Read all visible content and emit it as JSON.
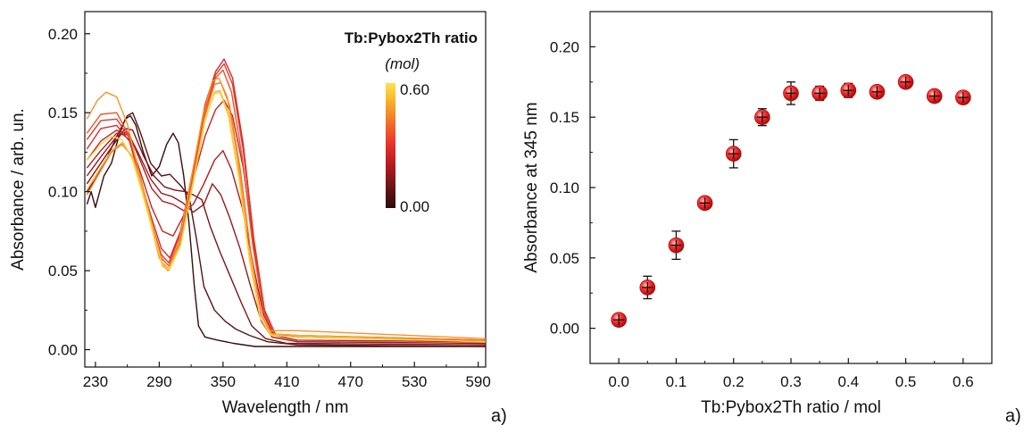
{
  "left_chart": {
    "type": "line",
    "xlabel": "Wavelength / nm",
    "ylabel": "Absorbance / arb. un.",
    "xlim": [
      220,
      597
    ],
    "ylim": [
      -0.011,
      0.214
    ],
    "x_ticks": [
      "230",
      "290",
      "350",
      "410",
      "470",
      "530",
      "590"
    ],
    "y_ticks": [
      "0.00",
      "0.05",
      "0.10",
      "0.15",
      "0.20"
    ],
    "legend_title": "Tb:Pybox2Th ratio",
    "legend_unit": "(mol)",
    "colorbar_max": "0.60",
    "colorbar_min": "0.00",
    "colorbar_colors": [
      "#2e0a0a",
      "#6a1416",
      "#b01a20",
      "#e5302a",
      "#f26a28",
      "#f8a82a",
      "#ffe24a"
    ],
    "panel_label": "a)",
    "series": [
      {
        "ratio": 0.0,
        "color": "#3a0b0b",
        "points": [
          [
            222,
            0.092
          ],
          [
            226,
            0.1
          ],
          [
            230,
            0.09
          ],
          [
            238,
            0.11
          ],
          [
            245,
            0.118
          ],
          [
            252,
            0.135
          ],
          [
            258,
            0.146
          ],
          [
            263,
            0.148
          ],
          [
            268,
            0.142
          ],
          [
            275,
            0.125
          ],
          [
            283,
            0.11
          ],
          [
            290,
            0.116
          ],
          [
            297,
            0.13
          ],
          [
            303,
            0.137
          ],
          [
            308,
            0.131
          ],
          [
            313,
            0.11
          ],
          [
            318,
            0.08
          ],
          [
            323,
            0.04
          ],
          [
            327,
            0.015
          ],
          [
            333,
            0.008
          ],
          [
            345,
            0.006
          ],
          [
            360,
            0.004
          ],
          [
            380,
            0.002
          ],
          [
            410,
            0.002
          ],
          [
            470,
            0.002
          ],
          [
            597,
            0.002
          ]
        ]
      },
      {
        "ratio": 0.05,
        "color": "#5a1212",
        "points": [
          [
            222,
            0.1
          ],
          [
            230,
            0.108
          ],
          [
            240,
            0.12
          ],
          [
            250,
            0.135
          ],
          [
            260,
            0.148
          ],
          [
            265,
            0.15
          ],
          [
            272,
            0.138
          ],
          [
            282,
            0.118
          ],
          [
            292,
            0.11
          ],
          [
            300,
            0.111
          ],
          [
            310,
            0.104
          ],
          [
            318,
            0.097
          ],
          [
            325,
            0.07
          ],
          [
            332,
            0.04
          ],
          [
            342,
            0.025
          ],
          [
            352,
            0.018
          ],
          [
            362,
            0.013
          ],
          [
            375,
            0.009
          ],
          [
            392,
            0.005
          ],
          [
            420,
            0.003
          ],
          [
            597,
            0.002
          ]
        ]
      },
      {
        "ratio": 0.1,
        "color": "#7e1418",
        "points": [
          [
            222,
            0.105
          ],
          [
            232,
            0.115
          ],
          [
            245,
            0.128
          ],
          [
            258,
            0.14
          ],
          [
            265,
            0.139
          ],
          [
            275,
            0.123
          ],
          [
            285,
            0.11
          ],
          [
            295,
            0.103
          ],
          [
            305,
            0.101
          ],
          [
            315,
            0.1
          ],
          [
            322,
            0.098
          ],
          [
            330,
            0.095
          ],
          [
            338,
            0.078
          ],
          [
            347,
            0.062
          ],
          [
            357,
            0.046
          ],
          [
            367,
            0.03
          ],
          [
            377,
            0.015
          ],
          [
            390,
            0.007
          ],
          [
            410,
            0.004
          ],
          [
            597,
            0.003
          ]
        ]
      },
      {
        "ratio": 0.15,
        "color": "#991a1c",
        "points": [
          [
            222,
            0.11
          ],
          [
            235,
            0.122
          ],
          [
            250,
            0.135
          ],
          [
            260,
            0.138
          ],
          [
            270,
            0.125
          ],
          [
            282,
            0.108
          ],
          [
            292,
            0.099
          ],
          [
            302,
            0.097
          ],
          [
            312,
            0.093
          ],
          [
            322,
            0.087
          ],
          [
            332,
            0.092
          ],
          [
            340,
            0.105
          ],
          [
            348,
            0.098
          ],
          [
            356,
            0.084
          ],
          [
            366,
            0.064
          ],
          [
            376,
            0.04
          ],
          [
            386,
            0.018
          ],
          [
            396,
            0.008
          ],
          [
            420,
            0.005
          ],
          [
            597,
            0.004
          ]
        ]
      },
      {
        "ratio": 0.2,
        "color": "#b01c22",
        "points": [
          [
            222,
            0.115
          ],
          [
            235,
            0.126
          ],
          [
            250,
            0.137
          ],
          [
            262,
            0.136
          ],
          [
            272,
            0.12
          ],
          [
            283,
            0.102
          ],
          [
            293,
            0.094
          ],
          [
            303,
            0.092
          ],
          [
            313,
            0.088
          ],
          [
            322,
            0.092
          ],
          [
            332,
            0.105
          ],
          [
            342,
            0.12
          ],
          [
            350,
            0.126
          ],
          [
            358,
            0.114
          ],
          [
            368,
            0.09
          ],
          [
            378,
            0.055
          ],
          [
            388,
            0.022
          ],
          [
            398,
            0.009
          ],
          [
            420,
            0.006
          ],
          [
            597,
            0.005
          ]
        ]
      },
      {
        "ratio": 0.25,
        "color": "#c72426",
        "points": [
          [
            222,
            0.12
          ],
          [
            235,
            0.132
          ],
          [
            250,
            0.139
          ],
          [
            262,
            0.133
          ],
          [
            272,
            0.113
          ],
          [
            283,
            0.09
          ],
          [
            293,
            0.075
          ],
          [
            303,
            0.072
          ],
          [
            313,
            0.085
          ],
          [
            323,
            0.11
          ],
          [
            333,
            0.135
          ],
          [
            343,
            0.152
          ],
          [
            351,
            0.158
          ],
          [
            359,
            0.148
          ],
          [
            369,
            0.115
          ],
          [
            379,
            0.065
          ],
          [
            389,
            0.025
          ],
          [
            399,
            0.01
          ],
          [
            420,
            0.008
          ],
          [
            597,
            0.006
          ]
        ]
      },
      {
        "ratio": 0.3,
        "color": "#d62c2a",
        "points": [
          [
            222,
            0.127
          ],
          [
            235,
            0.14
          ],
          [
            250,
            0.142
          ],
          [
            262,
            0.132
          ],
          [
            272,
            0.108
          ],
          [
            283,
            0.083
          ],
          [
            292,
            0.064
          ],
          [
            300,
            0.058
          ],
          [
            310,
            0.075
          ],
          [
            322,
            0.115
          ],
          [
            333,
            0.155
          ],
          [
            343,
            0.176
          ],
          [
            351,
            0.184
          ],
          [
            359,
            0.172
          ],
          [
            369,
            0.13
          ],
          [
            379,
            0.07
          ],
          [
            389,
            0.025
          ],
          [
            399,
            0.01
          ],
          [
            420,
            0.008
          ],
          [
            597,
            0.006
          ]
        ]
      },
      {
        "ratio": 0.35,
        "color": "#e3392b",
        "points": [
          [
            222,
            0.133
          ],
          [
            235,
            0.145
          ],
          [
            250,
            0.146
          ],
          [
            262,
            0.134
          ],
          [
            272,
            0.11
          ],
          [
            283,
            0.08
          ],
          [
            292,
            0.06
          ],
          [
            299,
            0.055
          ],
          [
            310,
            0.073
          ],
          [
            322,
            0.113
          ],
          [
            333,
            0.152
          ],
          [
            343,
            0.174
          ],
          [
            351,
            0.181
          ],
          [
            359,
            0.168
          ],
          [
            369,
            0.126
          ],
          [
            379,
            0.068
          ],
          [
            389,
            0.024
          ],
          [
            399,
            0.01
          ],
          [
            420,
            0.008
          ],
          [
            597,
            0.006
          ]
        ]
      },
      {
        "ratio": 0.4,
        "color": "#ec5328",
        "points": [
          [
            222,
            0.137
          ],
          [
            235,
            0.149
          ],
          [
            250,
            0.15
          ],
          [
            262,
            0.135
          ],
          [
            272,
            0.11
          ],
          [
            283,
            0.08
          ],
          [
            292,
            0.058
          ],
          [
            299,
            0.053
          ],
          [
            310,
            0.07
          ],
          [
            322,
            0.11
          ],
          [
            333,
            0.15
          ],
          [
            343,
            0.172
          ],
          [
            350,
            0.177
          ],
          [
            358,
            0.163
          ],
          [
            368,
            0.122
          ],
          [
            378,
            0.066
          ],
          [
            388,
            0.024
          ],
          [
            398,
            0.01
          ],
          [
            420,
            0.009
          ],
          [
            597,
            0.006
          ]
        ]
      },
      {
        "ratio": 0.45,
        "color": "#f27227",
        "points": [
          [
            222,
            0.098
          ],
          [
            232,
            0.11
          ],
          [
            245,
            0.125
          ],
          [
            255,
            0.13
          ],
          [
            265,
            0.122
          ],
          [
            275,
            0.102
          ],
          [
            285,
            0.075
          ],
          [
            293,
            0.055
          ],
          [
            299,
            0.051
          ],
          [
            310,
            0.068
          ],
          [
            322,
            0.108
          ],
          [
            333,
            0.148
          ],
          [
            342,
            0.168
          ],
          [
            348,
            0.169
          ],
          [
            356,
            0.155
          ],
          [
            366,
            0.115
          ],
          [
            376,
            0.062
          ],
          [
            386,
            0.022
          ],
          [
            396,
            0.01
          ],
          [
            420,
            0.009
          ],
          [
            597,
            0.006
          ]
        ]
      },
      {
        "ratio": 0.5,
        "color": "#f7932a",
        "points": [
          [
            222,
            0.146
          ],
          [
            232,
            0.158
          ],
          [
            240,
            0.163
          ],
          [
            250,
            0.16
          ],
          [
            260,
            0.143
          ],
          [
            270,
            0.115
          ],
          [
            280,
            0.085
          ],
          [
            290,
            0.058
          ],
          [
            298,
            0.05
          ],
          [
            308,
            0.066
          ],
          [
            320,
            0.108
          ],
          [
            331,
            0.148
          ],
          [
            340,
            0.17
          ],
          [
            346,
            0.172
          ],
          [
            354,
            0.16
          ],
          [
            364,
            0.12
          ],
          [
            374,
            0.064
          ],
          [
            384,
            0.024
          ],
          [
            394,
            0.012
          ],
          [
            420,
            0.012
          ],
          [
            597,
            0.007
          ]
        ]
      },
      {
        "ratio": 0.55,
        "color": "#f8b02c",
        "points": [
          [
            222,
            0.101
          ],
          [
            232,
            0.112
          ],
          [
            245,
            0.126
          ],
          [
            255,
            0.131
          ],
          [
            265,
            0.122
          ],
          [
            275,
            0.1
          ],
          [
            285,
            0.074
          ],
          [
            293,
            0.053
          ],
          [
            299,
            0.05
          ],
          [
            310,
            0.066
          ],
          [
            322,
            0.106
          ],
          [
            333,
            0.145
          ],
          [
            342,
            0.163
          ],
          [
            347,
            0.164
          ],
          [
            355,
            0.15
          ],
          [
            365,
            0.11
          ],
          [
            375,
            0.058
          ],
          [
            385,
            0.02
          ],
          [
            395,
            0.01
          ],
          [
            420,
            0.009
          ],
          [
            597,
            0.005
          ]
        ]
      },
      {
        "ratio": 0.6,
        "color": "#fbd23a",
        "points": [
          [
            222,
            0.12
          ],
          [
            235,
            0.13
          ],
          [
            245,
            0.135
          ],
          [
            255,
            0.133
          ],
          [
            265,
            0.12
          ],
          [
            275,
            0.097
          ],
          [
            285,
            0.072
          ],
          [
            293,
            0.054
          ],
          [
            299,
            0.051
          ],
          [
            310,
            0.066
          ],
          [
            322,
            0.106
          ],
          [
            333,
            0.146
          ],
          [
            342,
            0.162
          ],
          [
            347,
            0.163
          ],
          [
            355,
            0.148
          ],
          [
            365,
            0.108
          ],
          [
            375,
            0.056
          ],
          [
            385,
            0.02
          ],
          [
            395,
            0.009
          ],
          [
            420,
            0.008
          ],
          [
            597,
            0.005
          ]
        ]
      }
    ]
  },
  "right_chart": {
    "type": "scatter",
    "xlabel": "Tb:Pybox2Th ratio / mol",
    "ylabel": "Absorbance at 345 nm",
    "xlim": [
      -0.05,
      0.65
    ],
    "ylim": [
      -0.025,
      0.225
    ],
    "x_ticks": [
      "0.0",
      "0.1",
      "0.2",
      "0.3",
      "0.4",
      "0.5",
      "0.6"
    ],
    "y_ticks": [
      "0.00",
      "0.05",
      "0.10",
      "0.15",
      "0.20"
    ],
    "marker_color": "#ee1111",
    "panel_label": "a)",
    "x": [
      0.0,
      0.05,
      0.1,
      0.15,
      0.2,
      0.25,
      0.3,
      0.35,
      0.4,
      0.45,
      0.5,
      0.55,
      0.6
    ],
    "y": [
      0.006,
      0.029,
      0.059,
      0.089,
      0.124,
      0.15,
      0.167,
      0.167,
      0.169,
      0.168,
      0.175,
      0.165,
      0.164
    ],
    "yerr": [
      0.003,
      0.008,
      0.01,
      0.004,
      0.01,
      0.006,
      0.008,
      0.005,
      0.005,
      0.003,
      0.004,
      0.004,
      0.003
    ]
  }
}
